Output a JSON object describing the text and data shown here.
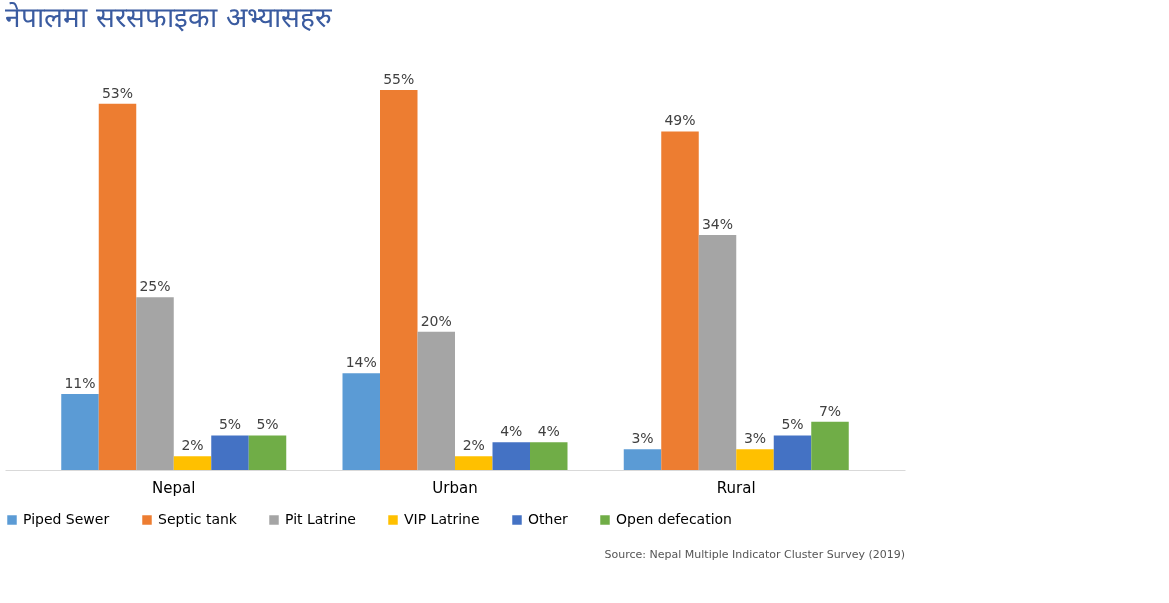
{
  "chart_data": {
    "type": "bar",
    "title": "नेपालमा सरसफाइका अभ्यासहरु",
    "categories": [
      "Nepal",
      "Urban",
      "Rural"
    ],
    "series": [
      {
        "name": "Piped Sewer",
        "color": "#5b9bd5",
        "values": [
          11,
          14,
          3
        ],
        "value_labels": [
          "11%",
          "14%",
          "3%"
        ]
      },
      {
        "name": "Septic tank",
        "color": "#ed7d31",
        "values": [
          53,
          55,
          49
        ],
        "value_labels": [
          "53%",
          "55%",
          "49%"
        ]
      },
      {
        "name": "Pit Latrine",
        "color": "#a5a5a5",
        "values": [
          25,
          20,
          34
        ],
        "value_labels": [
          "25%",
          "20%",
          "34%"
        ]
      },
      {
        "name": "VIP Latrine",
        "color": "#ffc000",
        "values": [
          2,
          2,
          3
        ],
        "value_labels": [
          "2%",
          "2%",
          "3%"
        ]
      },
      {
        "name": "Other",
        "color": "#4472c4",
        "values": [
          5,
          4,
          5
        ],
        "value_labels": [
          "5%",
          "4%",
          "5%"
        ]
      },
      {
        "name": "Open defecation",
        "color": "#70ad47",
        "values": [
          5,
          4,
          7
        ],
        "value_labels": [
          "5%",
          "4%",
          "7%"
        ]
      }
    ],
    "legend": "bottom",
    "grid": false,
    "tick_labels": "x",
    "annotations": [
      "Source: Nepal Multiple Indicator Cluster Survey (2019)"
    ]
  }
}
